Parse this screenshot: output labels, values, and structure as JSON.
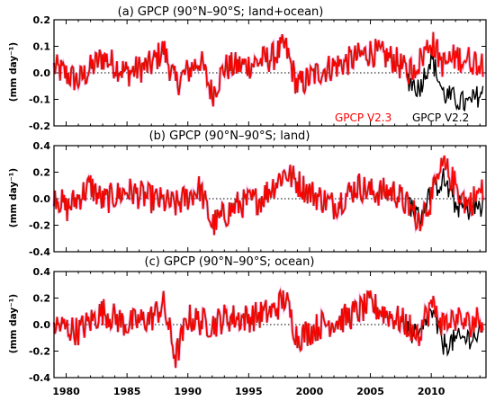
{
  "figure": {
    "x_axis": {
      "tick_labels": [
        "1980",
        "1985",
        "1990",
        "1995",
        "2000",
        "2005",
        "2010"
      ],
      "range": [
        1979,
        2014.5
      ]
    },
    "legend": {
      "entries": [
        {
          "label": "GPCP V2.3",
          "color": "#ff0000"
        },
        {
          "label": "GPCP V2.2",
          "color": "#000000"
        }
      ],
      "placement": "bottom-right of panel a"
    },
    "colors": {
      "v23": "#ff0000",
      "v22": "#000000",
      "overlap": "#993300",
      "highlight": "#ff66ff"
    }
  },
  "chart_data": [
    {
      "type": "line",
      "title": "(a) GPCP (90°N–90°S; land+ocean)",
      "ylabel": "(mm day⁻¹)",
      "ylim": [
        -0.2,
        0.2
      ],
      "yticks": [
        "0.2",
        "0.1",
        "0.0",
        "-0.1",
        "-0.2"
      ],
      "xlim": [
        1979,
        2014.5
      ],
      "zero_line": "dotted",
      "series": [
        {
          "name": "GPCP V2.3",
          "x": [
            1979,
            1981,
            1983,
            1985,
            1987,
            1988,
            1989,
            1991,
            1992,
            1993,
            1995,
            1997,
            1998,
            1999,
            2001,
            2003,
            2005,
            2007,
            2008,
            2009,
            2010,
            2011,
            2012,
            2013,
            2014
          ],
          "values": [
            0.02,
            -0.03,
            0.06,
            0.0,
            0.03,
            0.09,
            -0.04,
            0.05,
            -0.08,
            0.02,
            0.03,
            0.06,
            0.1,
            -0.05,
            0.01,
            0.04,
            0.08,
            0.05,
            0.0,
            0.04,
            0.12,
            0.03,
            0.06,
            0.05,
            0.04
          ]
        },
        {
          "name": "GPCP V2.2",
          "x": [
            2008,
            2009,
            2010,
            2011,
            2012,
            2013,
            2014
          ],
          "values": [
            -0.02,
            -0.06,
            0.06,
            -0.08,
            -0.1,
            -0.12,
            -0.08
          ]
        }
      ]
    },
    {
      "type": "line",
      "title": "(b) GPCP (90°N–90°S; land)",
      "ylabel": "(mm day⁻¹)",
      "ylim": [
        -0.4,
        0.4
      ],
      "yticks": [
        "0.4",
        "0.2",
        "0.0",
        "-0.2",
        "-0.4"
      ],
      "xlim": [
        1979,
        2014.5
      ],
      "zero_line": "dotted",
      "series": [
        {
          "name": "GPCP V2.3",
          "x": [
            1979,
            1980,
            1982,
            1983,
            1985,
            1987,
            1989,
            1991,
            1992,
            1994,
            1996,
            1997,
            1998,
            2000,
            2002,
            2004,
            2005,
            2007,
            2009,
            2010,
            2011,
            2012,
            2013,
            2014
          ],
          "values": [
            0.05,
            -0.08,
            0.1,
            -0.02,
            0.06,
            0.0,
            -0.05,
            0.08,
            -0.2,
            -0.05,
            0.0,
            0.1,
            0.2,
            0.05,
            -0.05,
            0.1,
            0.05,
            0.05,
            -0.15,
            0.0,
            0.25,
            0.1,
            -0.05,
            0.05
          ]
        },
        {
          "name": "GPCP V2.2",
          "x": [
            2008,
            2009,
            2010,
            2011,
            2012,
            2013,
            2014
          ],
          "values": [
            0.0,
            -0.15,
            0.05,
            0.15,
            -0.05,
            -0.08,
            -0.06
          ]
        }
      ]
    },
    {
      "type": "line",
      "title": "(c) GPCP (90°N–90°S; ocean)",
      "ylabel": "(mm day⁻¹)",
      "ylim": [
        -0.4,
        0.4
      ],
      "yticks": [
        "0.4",
        "0.2",
        "0.0",
        "-0.2",
        "-0.4"
      ],
      "xlim": [
        1979,
        2014.5
      ],
      "zero_line": "dotted",
      "series": [
        {
          "name": "GPCP V2.3",
          "x": [
            1979,
            1981,
            1983,
            1985,
            1987,
            1988,
            1989,
            1990,
            1992,
            1993,
            1995,
            1997,
            1998,
            1999,
            2001,
            2003,
            2005,
            2007,
            2008,
            2009,
            2010,
            2011,
            2012,
            2013,
            2014
          ],
          "values": [
            0.0,
            -0.05,
            0.1,
            0.0,
            0.05,
            0.15,
            -0.25,
            0.05,
            0.0,
            0.05,
            0.05,
            0.1,
            0.2,
            -0.1,
            0.0,
            0.05,
            0.15,
            0.05,
            0.0,
            -0.05,
            0.15,
            0.0,
            0.05,
            0.0,
            0.05
          ]
        },
        {
          "name": "GPCP V2.2",
          "x": [
            2008,
            2009,
            2010,
            2011,
            2012,
            2013,
            2014
          ],
          "values": [
            -0.05,
            -0.1,
            0.1,
            -0.15,
            -0.12,
            -0.1,
            -0.08
          ]
        }
      ]
    }
  ]
}
